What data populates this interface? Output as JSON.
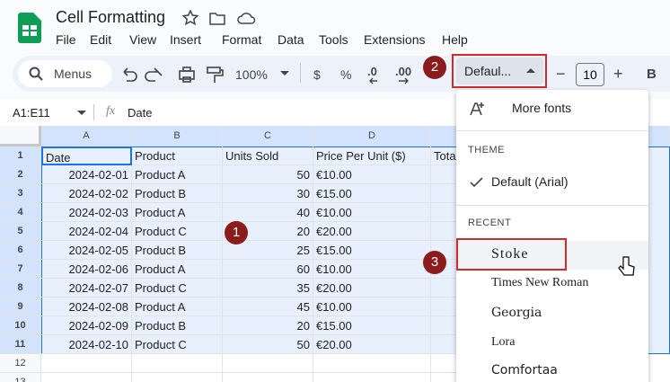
{
  "app": {
    "title": "Cell Formatting",
    "menu": [
      "File",
      "Edit",
      "View",
      "Insert",
      "Format",
      "Data",
      "Tools",
      "Extensions",
      "Help"
    ]
  },
  "toolbar": {
    "search": "Menus",
    "zoom": "100%",
    "currency": "$",
    "percent": "%",
    "decrease_decimals": ".0",
    "increase_decimals": ".00",
    "font": "Defaul...",
    "font_size": "10",
    "minus": "−",
    "plus": "+",
    "bold": "B"
  },
  "formula_bar": {
    "range": "A1:E11",
    "fx": "fx",
    "content": "Date"
  },
  "sheet": {
    "columns": [
      "A",
      "B",
      "C",
      "D"
    ],
    "row_numbers": [
      1,
      2,
      3,
      4,
      5,
      6,
      7,
      8,
      9,
      10,
      11,
      12,
      13
    ],
    "rows": [
      [
        "Date",
        "Product",
        "Units Sold",
        "Price Per Unit ($)",
        "Tota"
      ],
      [
        "2024-02-01",
        "Product A",
        50,
        "€10.00"
      ],
      [
        "2024-02-02",
        "Product B",
        30,
        "€15.00"
      ],
      [
        "2024-02-03",
        "Product A",
        40,
        "€10.00"
      ],
      [
        "2024-02-04",
        "Product C",
        20,
        "€20.00"
      ],
      [
        "2024-02-05",
        "Product B",
        25,
        "€15.00"
      ],
      [
        "2024-02-06",
        "Product A",
        60,
        "€10.00"
      ],
      [
        "2024-02-07",
        "Product C",
        35,
        "€20.00"
      ],
      [
        "2024-02-08",
        "Product A",
        45,
        "€10.00"
      ],
      [
        "2024-02-09",
        "Product B",
        20,
        "€15.00"
      ],
      [
        "2024-02-10",
        "Product C",
        50,
        "€20.00"
      ]
    ]
  },
  "font_menu": {
    "more_fonts": "More fonts",
    "theme_heading": "THEME",
    "theme_font": "Default (Arial)",
    "recent_heading": "RECENT",
    "recent": [
      "Stoke",
      "Times New Roman",
      "Georgia",
      "Lora",
      "Comfortaa"
    ]
  },
  "annotations": [
    "1",
    "2",
    "3"
  ]
}
